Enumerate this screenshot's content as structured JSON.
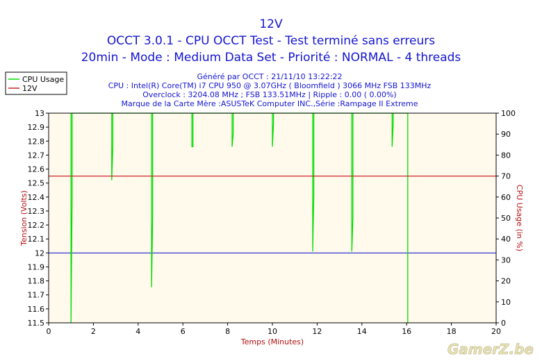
{
  "header": {
    "title": "12V",
    "subtitle1": "OCCT 3.0.1 - CPU OCCT Test - Test terminé sans erreurs",
    "subtitle2": "20min - Mode : Medium Data Set - Priorité : NORMAL - 4 threads"
  },
  "info_lines": [
    "Généré par OCCT : 21/11/10 13:22:22",
    "CPU : Intel(R) Core(TM) i7 CPU 950 @ 3.07GHz ( Bloomfield ) 3066 MHz FSB 133MHz",
    "Overclock : 3204.08 MHz ; FSB 133.51MHz | Ripple : 0.00 ( 0.00%)",
    "Marque de la Carte Mère :ASUSTeK Computer INC.,Série :Rampage II Extreme"
  ],
  "watermark": "GamerZ.be",
  "colors": {
    "title": "#1414d0",
    "cpu_series": "#00dd00",
    "volt_series": "#cc2222",
    "axis_label": "#b01010",
    "plot_bg": "#fffaec",
    "hline_12v": "#0000cc"
  },
  "chart_data": {
    "type": "line",
    "xlabel": "Temps (Minutes)",
    "ylabel_left": "Tension (Volts)",
    "ylabel_right": "CPU Usage (in %)",
    "xlim": [
      0,
      20
    ],
    "ylim_left": [
      11.5,
      13
    ],
    "ylim_right": [
      0,
      100
    ],
    "x_ticks": [
      0,
      2,
      4,
      6,
      8,
      10,
      12,
      14,
      16,
      18,
      20
    ],
    "y_left_ticks": [
      "11.5",
      "11.6",
      "11.7",
      "11.8",
      "11.9",
      "12",
      "12.1",
      "12.2",
      "12.3",
      "12.4",
      "12.5",
      "12.6",
      "12.7",
      "12.8",
      "12.9",
      "13"
    ],
    "y_right_ticks": [
      "0",
      "10",
      "20",
      "30",
      "40",
      "50",
      "60",
      "70",
      "80",
      "90",
      "100"
    ],
    "grid": false,
    "legend_position": "top-left",
    "reference_line_left": 12,
    "series": [
      {
        "name": "CPU Usage",
        "axis": "right",
        "x": [
          1.0,
          1.0,
          1.05,
          1.05,
          2.82,
          2.82,
          2.87,
          2.87,
          4.6,
          4.6,
          4.65,
          4.65,
          6.4,
          6.4,
          6.45,
          6.45,
          8.2,
          8.2,
          8.25,
          8.25,
          10.0,
          10.0,
          10.05,
          10.05,
          11.8,
          11.8,
          11.85,
          11.85,
          13.55,
          13.55,
          13.6,
          13.6,
          15.35,
          15.35,
          15.4,
          15.4,
          16.05,
          16.05,
          16.1
        ],
        "y": [
          100,
          0,
          60,
          100,
          100,
          68,
          84,
          100,
          100,
          17,
          50,
          100,
          100,
          84,
          84,
          100,
          100,
          84,
          90,
          100,
          100,
          84,
          95,
          100,
          100,
          34,
          60,
          100,
          100,
          34,
          50,
          100,
          100,
          84,
          95,
          100,
          100,
          0,
          0
        ]
      },
      {
        "name": "12V",
        "axis": "left",
        "x": [
          0,
          20
        ],
        "y": [
          12.55,
          12.55
        ]
      }
    ]
  }
}
